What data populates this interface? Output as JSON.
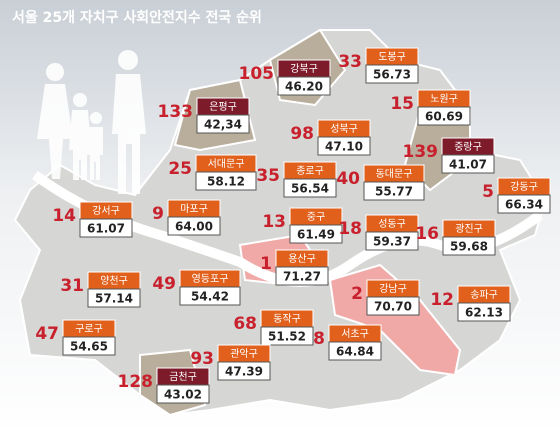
{
  "header": {
    "title": "서울 25개 자치구 사회안전지수 전국 순위"
  },
  "districts": [
    {
      "name": "강북구",
      "rank": 105,
      "score": "46.20",
      "color": "#7e1b2b"
    },
    {
      "name": "도봉구",
      "rank": 33,
      "score": "56.73",
      "color": "#e0601c"
    },
    {
      "name": "노원구",
      "rank": 15,
      "score": "60.69",
      "color": "#e0601c"
    },
    {
      "name": "은평구",
      "rank": 133,
      "score": "42,34",
      "color": "#7e1b2b"
    },
    {
      "name": "성북구",
      "rank": 98,
      "score": "47.10",
      "color": "#e0601c"
    },
    {
      "name": "중랑구",
      "rank": 139,
      "score": "41.07",
      "color": "#7e1b2b"
    },
    {
      "name": "서대문구",
      "rank": 25,
      "score": "58.12",
      "color": "#e0601c"
    },
    {
      "name": "종로구",
      "rank": 35,
      "score": "56.54",
      "color": "#e0601c"
    },
    {
      "name": "동대문구",
      "rank": 40,
      "score": "55.77",
      "color": "#e0601c"
    },
    {
      "name": "강동구",
      "rank": 5,
      "score": "66.34",
      "color": "#e0601c"
    },
    {
      "name": "강서구",
      "rank": 14,
      "score": "61.07",
      "color": "#e0601c"
    },
    {
      "name": "마포구",
      "rank": 9,
      "score": "64.00",
      "color": "#e0601c"
    },
    {
      "name": "중구",
      "rank": 13,
      "score": "61.49",
      "color": "#e0601c"
    },
    {
      "name": "성동구",
      "rank": 18,
      "score": "59.37",
      "color": "#e0601c"
    },
    {
      "name": "광진구",
      "rank": 16,
      "score": "59.68",
      "color": "#e0601c"
    },
    {
      "name": "용산구",
      "rank": 1,
      "score": "71.27",
      "color": "#e0601c"
    },
    {
      "name": "강남구",
      "rank": 2,
      "score": "70.70",
      "color": "#e0601c"
    },
    {
      "name": "송파구",
      "rank": 12,
      "score": "62.13",
      "color": "#e0601c"
    },
    {
      "name": "양천구",
      "rank": 31,
      "score": "57.14",
      "color": "#e0601c"
    },
    {
      "name": "영등포구",
      "rank": 49,
      "score": "54.42",
      "color": "#e0601c"
    },
    {
      "name": "구로구",
      "rank": 47,
      "score": "54.65",
      "color": "#e0601c"
    },
    {
      "name": "동작구",
      "rank": 68,
      "score": "51.52",
      "color": "#e0601c"
    },
    {
      "name": "서초구",
      "rank": 8,
      "score": "64.84",
      "color": "#e0601c"
    },
    {
      "name": "관악구",
      "rank": 93,
      "score": "47.39",
      "color": "#e0601c"
    },
    {
      "name": "금천구",
      "rank": 128,
      "score": "43.02",
      "color": "#7e1b2b"
    }
  ]
}
